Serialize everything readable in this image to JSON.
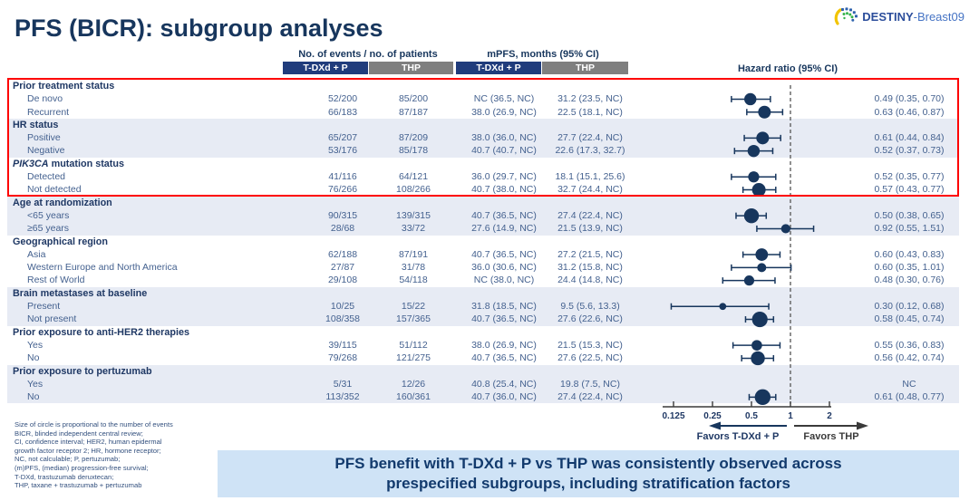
{
  "logo": {
    "name_bold": "DESTINY",
    "name_light": "-Breast09"
  },
  "title": "PFS (BICR): subgroup analyses",
  "table": {
    "events_header": "No. of events / no. of patients",
    "mpfs_header": "mPFS, months (95% CI)",
    "hr_header": "Hazard ratio (95% CI)",
    "arm1": "T-DXd + P",
    "arm2": "THP"
  },
  "chart_data": {
    "type": "scatter",
    "subtype": "forest-plot",
    "xscale": "log2",
    "x_ticks": [
      0.125,
      0.25,
      0.5,
      1,
      2
    ],
    "reference_line": 1,
    "groups": [
      {
        "label": "Prior treatment status",
        "shaded": false,
        "items": [
          {
            "label": "De novo",
            "events_tdxd_p": "52/200",
            "events_thp": "85/200",
            "mpfs_tdxd_p": "NC (36.5, NC)",
            "mpfs_thp": "31.2 (23.5, NC)",
            "hr_text": "0.49 (0.35, 0.70)",
            "hr": 0.49,
            "lo": 0.35,
            "hi": 0.7,
            "total_events": 137
          },
          {
            "label": "Recurrent",
            "events_tdxd_p": "66/183",
            "events_thp": "87/187",
            "mpfs_tdxd_p": "38.0 (26.9, NC)",
            "mpfs_thp": "22.5 (18.1, NC)",
            "hr_text": "0.63 (0.46, 0.87)",
            "hr": 0.63,
            "lo": 0.46,
            "hi": 0.87,
            "total_events": 153
          }
        ]
      },
      {
        "label": "HR status",
        "shaded": true,
        "items": [
          {
            "label": "Positive",
            "events_tdxd_p": "65/207",
            "events_thp": "87/209",
            "mpfs_tdxd_p": "38.0 (36.0, NC)",
            "mpfs_thp": "27.7 (22.4, NC)",
            "hr_text": "0.61 (0.44, 0.84)",
            "hr": 0.61,
            "lo": 0.44,
            "hi": 0.84,
            "total_events": 152
          },
          {
            "label": "Negative",
            "events_tdxd_p": "53/176",
            "events_thp": "85/178",
            "mpfs_tdxd_p": "40.7 (40.7, NC)",
            "mpfs_thp": "22.6 (17.3, 32.7)",
            "hr_text": "0.52 (0.37, 0.73)",
            "hr": 0.52,
            "lo": 0.37,
            "hi": 0.73,
            "total_events": 138
          }
        ]
      },
      {
        "label": "PIK3CA mutation status",
        "label_italic_prefix": "PIK3CA",
        "label_rest": " mutation status",
        "shaded": false,
        "items": [
          {
            "label": "Detected",
            "events_tdxd_p": "41/116",
            "events_thp": "64/121",
            "mpfs_tdxd_p": "36.0 (29.7, NC)",
            "mpfs_thp": "18.1 (15.1, 25.6)",
            "hr_text": "0.52 (0.35, 0.77)",
            "hr": 0.52,
            "lo": 0.35,
            "hi": 0.77,
            "total_events": 105
          },
          {
            "label": "Not detected",
            "events_tdxd_p": "76/266",
            "events_thp": "108/266",
            "mpfs_tdxd_p": "40.7 (38.0, NC)",
            "mpfs_thp": "32.7 (24.4, NC)",
            "hr_text": "0.57 (0.43, 0.77)",
            "hr": 0.57,
            "lo": 0.43,
            "hi": 0.77,
            "total_events": 184
          }
        ]
      },
      {
        "label": "Age at randomization",
        "shaded": true,
        "items": [
          {
            "label": "<65 years",
            "events_tdxd_p": "90/315",
            "events_thp": "139/315",
            "mpfs_tdxd_p": "40.7 (36.5, NC)",
            "mpfs_thp": "27.4 (22.4, NC)",
            "hr_text": "0.50 (0.38, 0.65)",
            "hr": 0.5,
            "lo": 0.38,
            "hi": 0.65,
            "total_events": 229
          },
          {
            "label": "≥65 years",
            "events_tdxd_p": "28/68",
            "events_thp": "33/72",
            "mpfs_tdxd_p": "27.6 (14.9, NC)",
            "mpfs_thp": "21.5 (13.9, NC)",
            "hr_text": "0.92 (0.55, 1.51)",
            "hr": 0.92,
            "lo": 0.55,
            "hi": 1.51,
            "total_events": 61
          }
        ]
      },
      {
        "label": "Geographical region",
        "shaded": false,
        "items": [
          {
            "label": "Asia",
            "events_tdxd_p": "62/188",
            "events_thp": "87/191",
            "mpfs_tdxd_p": "40.7 (36.5, NC)",
            "mpfs_thp": "27.2 (21.5, NC)",
            "hr_text": "0.60 (0.43, 0.83)",
            "hr": 0.6,
            "lo": 0.43,
            "hi": 0.83,
            "total_events": 149
          },
          {
            "label": "Western Europe and North America",
            "events_tdxd_p": "27/87",
            "events_thp": "31/78",
            "mpfs_tdxd_p": "36.0 (30.6, NC)",
            "mpfs_thp": "31.2 (15.8, NC)",
            "hr_text": "0.60 (0.35, 1.01)",
            "hr": 0.6,
            "lo": 0.35,
            "hi": 1.01,
            "total_events": 58
          },
          {
            "label": "Rest of World",
            "events_tdxd_p": "29/108",
            "events_thp": "54/118",
            "mpfs_tdxd_p": "NC (38.0, NC)",
            "mpfs_thp": "24.4 (14.8, NC)",
            "hr_text": "0.48 (0.30, 0.76)",
            "hr": 0.48,
            "lo": 0.3,
            "hi": 0.76,
            "total_events": 83
          }
        ]
      },
      {
        "label": "Brain metastases at baseline",
        "shaded": true,
        "items": [
          {
            "label": "Present",
            "events_tdxd_p": "10/25",
            "events_thp": "15/22",
            "mpfs_tdxd_p": "31.8 (18.5, NC)",
            "mpfs_thp": "9.5 (5.6, 13.3)",
            "hr_text": "0.30 (0.12, 0.68)",
            "hr": 0.3,
            "lo": 0.12,
            "hi": 0.68,
            "total_events": 25
          },
          {
            "label": "Not present",
            "events_tdxd_p": "108/358",
            "events_thp": "157/365",
            "mpfs_tdxd_p": "40.7 (36.5, NC)",
            "mpfs_thp": "27.6 (22.6, NC)",
            "hr_text": "0.58 (0.45, 0.74)",
            "hr": 0.58,
            "lo": 0.45,
            "hi": 0.74,
            "total_events": 265
          }
        ]
      },
      {
        "label": "Prior exposure to anti-HER2 therapies",
        "shaded": false,
        "items": [
          {
            "label": "Yes",
            "events_tdxd_p": "39/115",
            "events_thp": "51/112",
            "mpfs_tdxd_p": "38.0 (26.9, NC)",
            "mpfs_thp": "21.5 (15.3, NC)",
            "hr_text": "0.55 (0.36, 0.83)",
            "hr": 0.55,
            "lo": 0.36,
            "hi": 0.83,
            "total_events": 90
          },
          {
            "label": "No",
            "events_tdxd_p": "79/268",
            "events_thp": "121/275",
            "mpfs_tdxd_p": "40.7 (36.5, NC)",
            "mpfs_thp": "27.6 (22.5, NC)",
            "hr_text": "0.56 (0.42, 0.74)",
            "hr": 0.56,
            "lo": 0.42,
            "hi": 0.74,
            "total_events": 200
          }
        ]
      },
      {
        "label": "Prior exposure to pertuzumab",
        "shaded": true,
        "items": [
          {
            "label": "Yes",
            "events_tdxd_p": "5/31",
            "events_thp": "12/26",
            "mpfs_tdxd_p": "40.8 (25.4, NC)",
            "mpfs_thp": "19.8 (7.5, NC)",
            "hr_text": "NC",
            "hr": null,
            "lo": null,
            "hi": null,
            "total_events": 17
          },
          {
            "label": "No",
            "events_tdxd_p": "113/352",
            "events_thp": "160/361",
            "mpfs_tdxd_p": "40.7 (36.0, NC)",
            "mpfs_thp": "27.4 (22.4, NC)",
            "hr_text": "0.61 (0.48, 0.77)",
            "hr": 0.61,
            "lo": 0.48,
            "hi": 0.77,
            "total_events": 273
          }
        ]
      }
    ]
  },
  "axis": {
    "favors_left": "Favors T-DXd + P",
    "favors_right": "Favors THP"
  },
  "footnotes": [
    "Size of circle is proportional to the number of events",
    "BICR, blinded independent central review;",
    "CI, confidence interval; HER2, human epidermal",
    "growth factor receptor 2; HR, hormone receptor;",
    "NC, not calculable; P, pertuzumab;",
    "(m)PFS, (median) progression-free survival;",
    "T-DXd, trastuzumab deruxtecan;",
    "THP, taxane + trastuzumab + pertuzumab"
  ],
  "banner": {
    "line1": "PFS benefit with T-DXd + P vs THP was consistently observed across",
    "line2": "prespecified subgroups, including stratification factors"
  },
  "colors": {
    "marker": "#17365d",
    "axis": "#3a3a3a",
    "ref_line": "#555555",
    "bar_blue": "#203c7c",
    "bar_gray": "#7f7f7f",
    "shade": "#e7ebf4",
    "red_box": "#fe0000",
    "banner_bg": "#cfe3f6"
  }
}
